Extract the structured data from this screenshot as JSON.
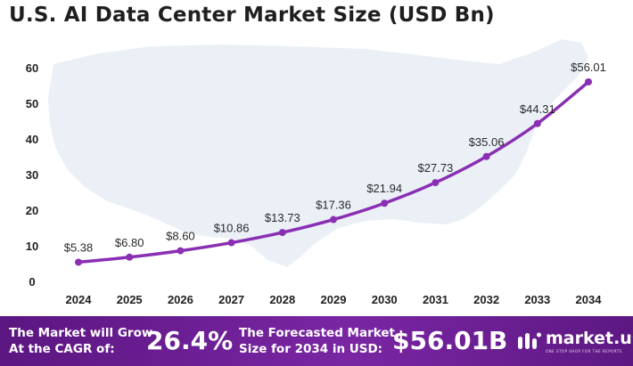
{
  "title": "U.S. AI Data Center Market Size (USD Bn)",
  "chart_data": {
    "type": "line",
    "title": "U.S. AI Data Center Market Size (USD Bn)",
    "x": [
      "2024",
      "2025",
      "2026",
      "2027",
      "2028",
      "2029",
      "2030",
      "2031",
      "2032",
      "2033",
      "2034"
    ],
    "values": [
      5.38,
      6.8,
      8.6,
      10.86,
      13.73,
      17.36,
      21.94,
      27.73,
      35.06,
      44.31,
      56.01
    ],
    "data_labels": [
      "$5.38",
      "$6.80",
      "$8.60",
      "$10.86",
      "$13.73",
      "$17.36",
      "$21.94",
      "$27.73",
      "$35.06",
      "$44.31",
      "$56.01"
    ],
    "ylim": [
      0,
      60
    ],
    "yticks": [
      "0",
      "10",
      "20",
      "30",
      "40",
      "50",
      "60"
    ],
    "grid": false,
    "line_color": "#8a2fb3",
    "background_shape": "us-map"
  },
  "banner": {
    "cagr_text_1": "The Market will Grow",
    "cagr_text_2": "At the CAGR of:",
    "cagr_value": "26.4%",
    "forecast_text_1": "The Forecasted Market",
    "forecast_text_2": "Size for 2034 in USD:",
    "forecast_value": "$56.01B",
    "brand": "market.us",
    "brand_tagline": "ONE STOP SHOP FOR THE REPORTS",
    "logo_icon": "market-us-logo-icon",
    "bg_color": "#6a1f92"
  }
}
